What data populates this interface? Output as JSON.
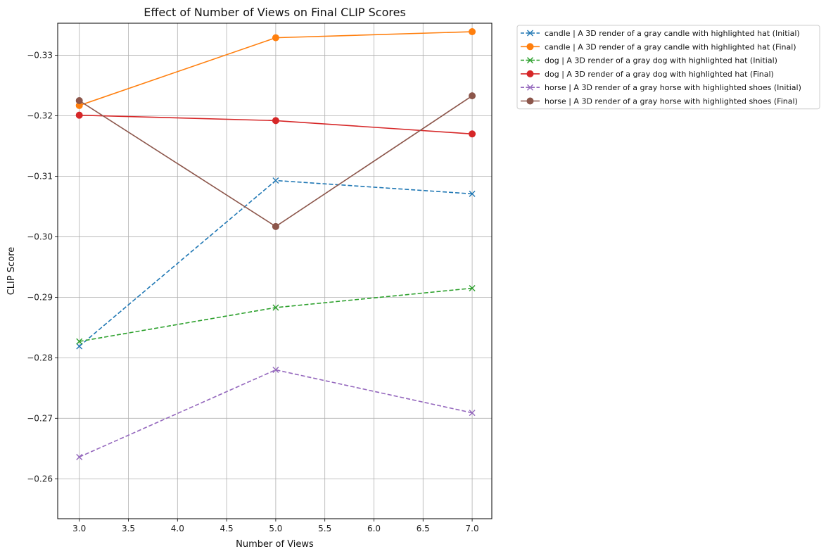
{
  "chart_data": {
    "type": "line",
    "title": "Effect of Number of Views on Final CLIP Scores",
    "xlabel": "Number of Views",
    "ylabel": "CLIP Score",
    "xlim": [
      2.78,
      7.2
    ],
    "ylim": [
      -0.2534,
      -0.3353
    ],
    "y_axis_inverted": true,
    "grid": true,
    "legend_position": "outside-top-right",
    "xticks": [
      3.0,
      3.5,
      4.0,
      4.5,
      5.0,
      5.5,
      6.0,
      6.5,
      7.0
    ],
    "xtick_labels": [
      "3.0",
      "3.5",
      "4.0",
      "4.5",
      "5.0",
      "5.5",
      "6.0",
      "6.5",
      "7.0"
    ],
    "yticks": [
      -0.26,
      -0.27,
      -0.28,
      -0.29,
      -0.3,
      -0.31,
      -0.32,
      -0.33
    ],
    "ytick_labels": [
      "−0.26",
      "−0.27",
      "−0.28",
      "−0.29",
      "−0.30",
      "−0.31",
      "−0.32",
      "−0.33"
    ],
    "x": [
      3,
      5,
      7
    ],
    "series": [
      {
        "name": "candle | A 3D render of a gray candle with highlighted hat (Initial)",
        "values": [
          -0.2819,
          -0.3093,
          -0.3071
        ],
        "color": "#1f77b4",
        "style": "dashed",
        "marker": "x"
      },
      {
        "name": "candle | A 3D render of a gray candle with highlighted hat (Final)",
        "values": [
          -0.3217,
          -0.3329,
          -0.3339
        ],
        "color": "#ff7f0e",
        "style": "solid",
        "marker": "o"
      },
      {
        "name": "dog | A 3D render of a gray dog with highlighted hat (Initial)",
        "values": [
          -0.2827,
          -0.2883,
          -0.2915
        ],
        "color": "#2ca02c",
        "style": "dashed",
        "marker": "x"
      },
      {
        "name": "dog | A 3D render of a gray dog with highlighted hat (Final)",
        "values": [
          -0.3201,
          -0.3192,
          -0.317
        ],
        "color": "#d62728",
        "style": "solid",
        "marker": "o"
      },
      {
        "name": "horse | A 3D render of a gray horse with highlighted shoes (Initial)",
        "values": [
          -0.2636,
          -0.278,
          -0.2709
        ],
        "color": "#9467bd",
        "style": "dashed",
        "marker": "x"
      },
      {
        "name": "horse | A 3D render of a gray horse with highlighted shoes (Final)",
        "values": [
          -0.3225,
          -0.3017,
          -0.3233
        ],
        "color": "#8c564b",
        "style": "solid",
        "marker": "o"
      }
    ]
  }
}
